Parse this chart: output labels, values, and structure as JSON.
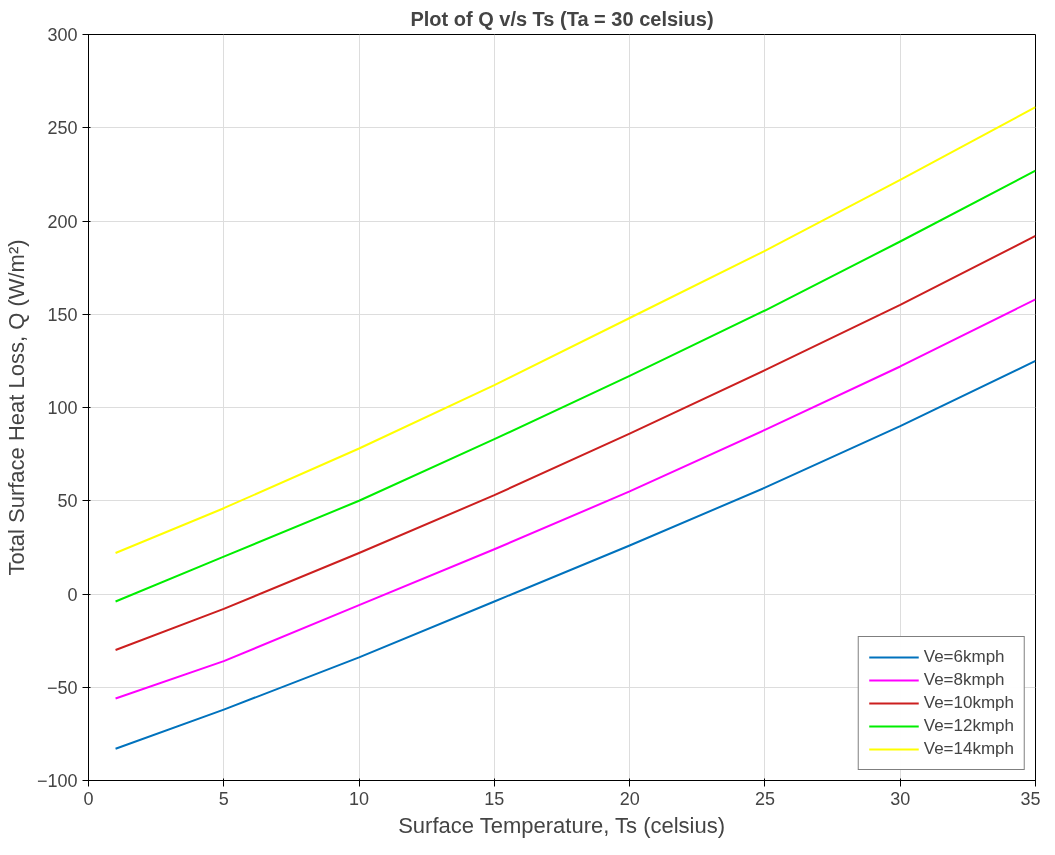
{
  "chart_data": {
    "type": "line",
    "title": "Plot of Q v/s Ts (Ta = 30 celsius)",
    "xlabel": "Surface Temperature, Ts (celsius)",
    "ylabel": "Total Surface Heat Loss, Q (W/m²)",
    "x": [
      1,
      5,
      10,
      15,
      20,
      25,
      30,
      35
    ],
    "series": [
      {
        "name": "Ve=6kmph",
        "color": "#0072bd",
        "values": [
          -83,
          -62,
          -34,
          -4,
          26,
          57,
          90,
          125
        ]
      },
      {
        "name": "Ve=8kmph",
        "color": "#ff00ff",
        "values": [
          -56,
          -36,
          -6,
          24,
          55,
          88,
          122,
          158
        ]
      },
      {
        "name": "Ve=10kmph",
        "color": "#cc1f1f",
        "values": [
          -30,
          -8,
          22,
          53,
          86,
          120,
          155,
          192
        ]
      },
      {
        "name": "Ve=12kmph",
        "color": "#00ee00",
        "values": [
          -4,
          20,
          50,
          83,
          117,
          152,
          189,
          227
        ]
      },
      {
        "name": "Ve=14kmph",
        "color": "#ffff00",
        "values": [
          22,
          46,
          78,
          112,
          148,
          184,
          222,
          261
        ]
      }
    ],
    "xlim": [
      0,
      35
    ],
    "xticks": [
      0,
      5,
      10,
      15,
      20,
      25,
      30,
      35
    ],
    "ylim": [
      -100,
      300
    ],
    "yticks": [
      -100,
      -50,
      0,
      50,
      100,
      150,
      200,
      250,
      300
    ],
    "grid": true,
    "legend": "bottom right",
    "line_style": "solid"
  }
}
